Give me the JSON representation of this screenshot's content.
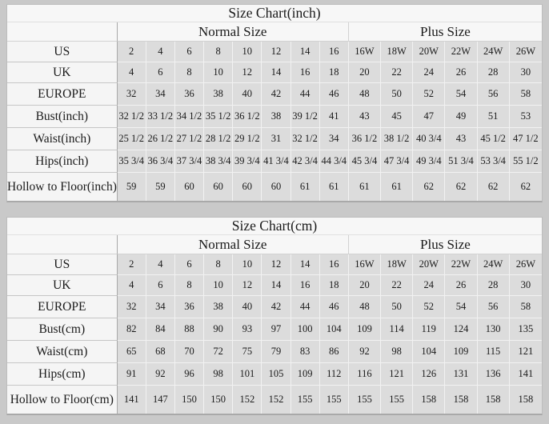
{
  "colors": {
    "page_bg": "#c9c9c9",
    "table_bg": "#f7f7f7",
    "cell_bg": "#dcdcdc",
    "text": "#1a1a1a",
    "divider": "#a8a8a8"
  },
  "chart_data": [
    {
      "type": "table",
      "title": "Size Chart(inch)",
      "column_groups": [
        {
          "label": "Normal Size",
          "span": 8
        },
        {
          "label": "Plus Size",
          "span": 6
        }
      ],
      "rows": [
        {
          "label": "US",
          "values": [
            "2",
            "4",
            "6",
            "8",
            "10",
            "12",
            "14",
            "16",
            "16W",
            "18W",
            "20W",
            "22W",
            "24W",
            "26W"
          ]
        },
        {
          "label": "UK",
          "values": [
            "4",
            "6",
            "8",
            "10",
            "12",
            "14",
            "16",
            "18",
            "20",
            "22",
            "24",
            "26",
            "28",
            "30"
          ]
        },
        {
          "label": "EUROPE",
          "values": [
            "32",
            "34",
            "36",
            "38",
            "40",
            "42",
            "44",
            "46",
            "48",
            "50",
            "52",
            "54",
            "56",
            "58"
          ]
        },
        {
          "label": "Bust(inch)",
          "values": [
            "32 1/2",
            "33 1/2",
            "34 1/2",
            "35 1/2",
            "36 1/2",
            "38",
            "39 1/2",
            "41",
            "43",
            "45",
            "47",
            "49",
            "51",
            "53"
          ]
        },
        {
          "label": "Waist(inch)",
          "values": [
            "25 1/2",
            "26 1/2",
            "27 1/2",
            "28 1/2",
            "29 1/2",
            "31",
            "32 1/2",
            "34",
            "36 1/2",
            "38 1/2",
            "40 3/4",
            "43",
            "45 1/2",
            "47 1/2"
          ]
        },
        {
          "label": "Hips(inch)",
          "values": [
            "35 3/4",
            "36 3/4",
            "37 3/4",
            "38 3/4",
            "39 3/4",
            "41 3/4",
            "42 3/4",
            "44 3/4",
            "45 3/4",
            "47 3/4",
            "49 3/4",
            "51 3/4",
            "53 3/4",
            "55 1/2"
          ]
        },
        {
          "label": "Hollow to Floor(inch)",
          "values": [
            "59",
            "59",
            "60",
            "60",
            "60",
            "60",
            "61",
            "61",
            "61",
            "61",
            "62",
            "62",
            "62",
            "62"
          ]
        }
      ]
    },
    {
      "type": "table",
      "title": "Size Chart(cm)",
      "column_groups": [
        {
          "label": "Normal Size",
          "span": 8
        },
        {
          "label": "Plus Size",
          "span": 6
        }
      ],
      "rows": [
        {
          "label": "US",
          "values": [
            "2",
            "4",
            "6",
            "8",
            "10",
            "12",
            "14",
            "16",
            "16W",
            "18W",
            "20W",
            "22W",
            "24W",
            "26W"
          ]
        },
        {
          "label": "UK",
          "values": [
            "4",
            "6",
            "8",
            "10",
            "12",
            "14",
            "16",
            "18",
            "20",
            "22",
            "24",
            "26",
            "28",
            "30"
          ]
        },
        {
          "label": "EUROPE",
          "values": [
            "32",
            "34",
            "36",
            "38",
            "40",
            "42",
            "44",
            "46",
            "48",
            "50",
            "52",
            "54",
            "56",
            "58"
          ]
        },
        {
          "label": "Bust(cm)",
          "values": [
            "82",
            "84",
            "88",
            "90",
            "93",
            "97",
            "100",
            "104",
            "109",
            "114",
            "119",
            "124",
            "130",
            "135"
          ]
        },
        {
          "label": "Waist(cm)",
          "values": [
            "65",
            "68",
            "70",
            "72",
            "75",
            "79",
            "83",
            "86",
            "92",
            "98",
            "104",
            "109",
            "115",
            "121"
          ]
        },
        {
          "label": "Hips(cm)",
          "values": [
            "91",
            "92",
            "96",
            "98",
            "101",
            "105",
            "109",
            "112",
            "116",
            "121",
            "126",
            "131",
            "136",
            "141"
          ]
        },
        {
          "label": "Hollow to Floor(cm)",
          "values": [
            "141",
            "147",
            "150",
            "150",
            "152",
            "152",
            "155",
            "155",
            "155",
            "155",
            "158",
            "158",
            "158",
            "158"
          ]
        }
      ]
    }
  ]
}
